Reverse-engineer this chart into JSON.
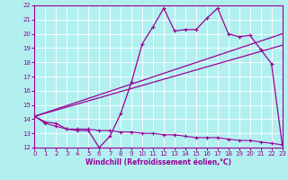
{
  "xlabel": "Windchill (Refroidissement éolien,°C)",
  "bg_color": "#b2f0f0",
  "line_color": "#990099",
  "grid_color": "#ffffff",
  "xlim": [
    0,
    23
  ],
  "ylim": [
    12,
    22
  ],
  "xticks": [
    0,
    1,
    2,
    3,
    4,
    5,
    6,
    7,
    8,
    9,
    10,
    11,
    12,
    13,
    14,
    15,
    16,
    17,
    18,
    19,
    20,
    21,
    22,
    23
  ],
  "yticks": [
    12,
    13,
    14,
    15,
    16,
    17,
    18,
    19,
    20,
    21,
    22
  ],
  "line1_x": [
    0,
    1,
    2,
    3,
    4,
    5,
    6,
    7,
    8,
    9,
    10,
    11,
    12,
    13,
    14,
    15,
    16,
    17,
    18,
    19,
    20,
    21,
    22,
    23
  ],
  "line1_y": [
    14.2,
    13.8,
    13.7,
    13.3,
    13.2,
    13.2,
    12.0,
    12.8,
    14.4,
    16.6,
    19.3,
    20.5,
    21.8,
    20.2,
    20.3,
    20.3,
    21.1,
    21.8,
    20.0,
    19.8,
    19.9,
    18.9,
    17.9,
    12.2
  ],
  "line2_x": [
    0,
    23
  ],
  "line2_y": [
    14.2,
    20.0
  ],
  "line3_x": [
    0,
    23
  ],
  "line3_y": [
    14.2,
    19.2
  ],
  "line4_x": [
    0,
    1,
    2,
    3,
    4,
    5,
    6,
    7,
    8,
    9,
    10,
    11,
    12,
    13,
    14,
    15,
    16,
    17,
    18,
    19,
    20,
    21,
    22,
    23
  ],
  "line4_y": [
    14.2,
    13.7,
    13.5,
    13.3,
    13.3,
    13.3,
    13.2,
    13.2,
    13.1,
    13.1,
    13.0,
    13.0,
    12.9,
    12.9,
    12.8,
    12.7,
    12.7,
    12.7,
    12.6,
    12.5,
    12.5,
    12.4,
    12.3,
    12.2
  ]
}
